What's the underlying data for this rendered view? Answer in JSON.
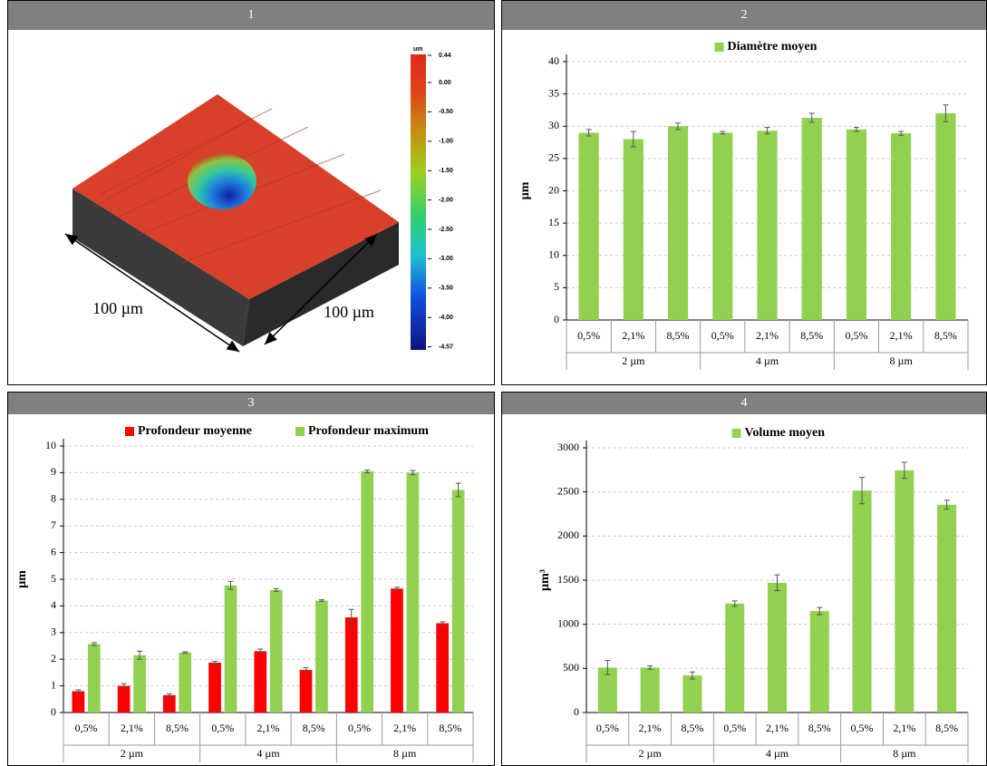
{
  "panel_labels": [
    "1",
    "2",
    "3",
    "4"
  ],
  "image": {
    "scale_unit": "um",
    "scale_ticks": [
      "0.44",
      "0.00",
      "-0.50",
      "-1.00",
      "-1.50",
      "-2.00",
      "-2.50",
      "-3.00",
      "-3.50",
      "-4.00",
      "-4.57"
    ],
    "dimension_labels": [
      "100 µm",
      "100 µm"
    ]
  },
  "chart_data": [
    {
      "type": "bar",
      "y_label": "µm",
      "categories": [
        "0,5%",
        "2,1%",
        "8,5%",
        "0,5%",
        "2,1%",
        "8,5%",
        "0,5%",
        "2,1%",
        "8,5%"
      ],
      "groups": [
        "2 µm",
        "4 µm",
        "8 µm"
      ],
      "series": [
        {
          "name": "Diamètre moyen",
          "color": "#92d050",
          "values": [
            29.0,
            28.0,
            30.0,
            29.0,
            29.3,
            31.3,
            29.5,
            28.9,
            32.0
          ],
          "errors": [
            0.5,
            1.2,
            0.5,
            0.2,
            0.5,
            0.7,
            0.3,
            0.3,
            1.3
          ]
        }
      ],
      "ylim": [
        0,
        40
      ],
      "yticks": [
        0,
        5,
        10,
        15,
        20,
        25,
        30,
        35,
        40
      ],
      "grid": true
    },
    {
      "type": "bar",
      "y_label": "µm",
      "categories": [
        "0,5%",
        "2,1%",
        "8,5%",
        "0,5%",
        "2,1%",
        "8,5%",
        "0,5%",
        "2,1%",
        "8,5%"
      ],
      "groups": [
        "2 µm",
        "4 µm",
        "8 µm"
      ],
      "series": [
        {
          "name": "Profondeur moyenne",
          "color": "#ff0000",
          "values": [
            0.8,
            1.0,
            0.65,
            1.87,
            2.3,
            1.6,
            3.57,
            4.65,
            3.35
          ],
          "errors": [
            0.05,
            0.08,
            0.05,
            0.05,
            0.08,
            0.08,
            0.3,
            0.05,
            0.05
          ]
        },
        {
          "name": "Profondeur maximum",
          "color": "#92d050",
          "values": [
            2.57,
            2.15,
            2.25,
            4.77,
            4.6,
            4.2,
            9.05,
            9.0,
            8.35
          ],
          "errors": [
            0.05,
            0.15,
            0.03,
            0.15,
            0.05,
            0.03,
            0.05,
            0.08,
            0.25
          ]
        }
      ],
      "ylim": [
        0,
        10
      ],
      "yticks": [
        0,
        1,
        2,
        3,
        4,
        5,
        6,
        7,
        8,
        9,
        10
      ],
      "grid": true
    },
    {
      "type": "bar",
      "y_label": "µm³",
      "categories": [
        "0,5%",
        "2,1%",
        "8,5%",
        "0,5%",
        "2,1%",
        "8,5%",
        "0,5%",
        "2,1%",
        "8,5%"
      ],
      "groups": [
        "2 µm",
        "4 µm",
        "8 µm"
      ],
      "series": [
        {
          "name": "Volume moyen",
          "color": "#92d050",
          "values": [
            510,
            510,
            420,
            1235,
            1470,
            1150,
            2515,
            2745,
            2355
          ],
          "errors": [
            80,
            20,
            40,
            30,
            90,
            40,
            150,
            90,
            50
          ]
        }
      ],
      "ylim": [
        0,
        3000
      ],
      "yticks": [
        0,
        500,
        1000,
        1500,
        2000,
        2500,
        3000
      ],
      "grid": true
    }
  ]
}
